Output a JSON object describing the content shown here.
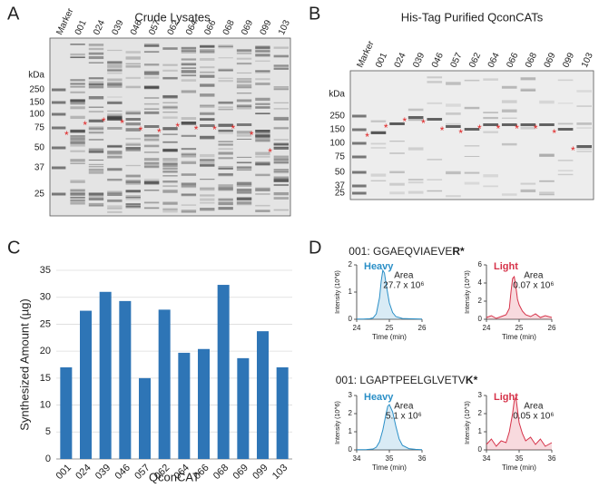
{
  "panel_labels": [
    "A",
    "B",
    "C",
    "D"
  ],
  "gels": [
    {
      "title": "Crude Lysates",
      "unit": "kDa",
      "asterisk": "*",
      "lanes": [
        "Marker",
        "001",
        "024",
        "039",
        "046",
        "057",
        "062",
        "064",
        "066",
        "068",
        "069",
        "099",
        "103"
      ],
      "markers": [
        "250",
        "150",
        "100",
        "75",
        "50",
        "37",
        "25"
      ]
    },
    {
      "title": "His-Tag Purified QconCATs",
      "unit": "kDa",
      "asterisk": "*",
      "lanes": [
        "Marker",
        "001",
        "024",
        "039",
        "046",
        "057",
        "062",
        "064",
        "066",
        "068",
        "069",
        "099",
        "103"
      ],
      "markers": [
        "250",
        "150",
        "100",
        "75",
        "50",
        "37",
        "25"
      ]
    }
  ],
  "peptides": [
    {
      "prefix": "001: GGAEQVIAEVE",
      "bold": "R*"
    },
    {
      "prefix": "001: LGAPTPEELGLVETV",
      "bold": "K*"
    }
  ],
  "chart_data": [
    {
      "type": "bar",
      "ylabel": "Synthesized Amount (µg)",
      "xlabel": "QconCAT",
      "categories": [
        "001",
        "024",
        "039",
        "046",
        "057",
        "062",
        "064",
        "066",
        "068",
        "069",
        "099",
        "103"
      ],
      "values": [
        17,
        27.5,
        31,
        29.3,
        15,
        27.7,
        19.7,
        20.4,
        32.3,
        18.7,
        23.7,
        17
      ],
      "color": "#2e75b6",
      "ylim": [
        0,
        35
      ],
      "yticks": [
        0,
        5,
        10,
        15,
        20,
        25,
        30,
        35
      ],
      "grid": true
    },
    {
      "type": "line",
      "ylabel": "Intensity (10^6)",
      "xlabel": "Time (min)",
      "annotations": [
        "Area",
        "27.7 x 10⁶"
      ],
      "x": [
        24.0,
        24.2,
        24.4,
        24.5,
        24.6,
        24.7,
        24.75,
        24.8,
        24.85,
        24.9,
        25.0,
        25.1,
        25.2,
        25.4,
        25.6,
        26.0
      ],
      "series": [
        {
          "name": "Heavy",
          "color": "#2a8fc7",
          "values": [
            0.01,
            0.01,
            0.02,
            0.05,
            0.2,
            0.8,
            1.4,
            1.8,
            1.7,
            1.3,
            0.6,
            0.25,
            0.1,
            0.03,
            0.02,
            0.01
          ]
        }
      ],
      "xlim": [
        24,
        26
      ],
      "xticks": [
        24,
        25,
        26
      ],
      "ylim": [
        0,
        2
      ],
      "yticks": [
        0,
        1,
        2
      ]
    },
    {
      "type": "line",
      "ylabel": "Intensity (10^3)",
      "xlabel": "Time (min)",
      "annotations": [
        "Area",
        "0.07 x 10⁶"
      ],
      "x": [
        24.0,
        24.15,
        24.3,
        24.45,
        24.6,
        24.7,
        24.75,
        24.8,
        24.85,
        24.9,
        24.95,
        25.0,
        25.1,
        25.2,
        25.35,
        25.5,
        25.65,
        25.8,
        26.0
      ],
      "series": [
        {
          "name": "Light",
          "color": "#d6334a",
          "values": [
            0.2,
            0.4,
            0.1,
            0.3,
            0.5,
            1.2,
            3.0,
            4.5,
            4.7,
            3.6,
            2.2,
            1.6,
            0.9,
            0.5,
            0.3,
            0.6,
            0.2,
            0.4,
            0.2
          ]
        }
      ],
      "xlim": [
        24,
        26
      ],
      "xticks": [
        24,
        25,
        26
      ],
      "ylim": [
        0,
        6
      ],
      "yticks": [
        0,
        2,
        4,
        6
      ]
    },
    {
      "type": "line",
      "ylabel": "Intensity (10^6)",
      "xlabel": "Time (min)",
      "annotations": [
        "Area",
        "5.1 x 10⁶"
      ],
      "x": [
        34.0,
        34.3,
        34.5,
        34.6,
        34.7,
        34.8,
        34.9,
        34.95,
        35.0,
        35.1,
        35.2,
        35.3,
        35.4,
        35.6,
        35.8,
        36.0
      ],
      "series": [
        {
          "name": "Heavy",
          "color": "#2a8fc7",
          "values": [
            0.01,
            0.02,
            0.05,
            0.15,
            0.45,
            1.1,
            2.0,
            2.4,
            2.5,
            2.1,
            1.3,
            0.6,
            0.25,
            0.07,
            0.03,
            0.01
          ]
        }
      ],
      "xlim": [
        34,
        36
      ],
      "xticks": [
        34,
        35,
        36
      ],
      "ylim": [
        0,
        3
      ],
      "yticks": [
        0,
        1,
        2,
        3
      ]
    },
    {
      "type": "line",
      "ylabel": "Intensity (10^3)",
      "xlabel": "Time (min)",
      "annotations": [
        "Area",
        "0.05 x 10⁶"
      ],
      "x": [
        34.0,
        34.15,
        34.3,
        34.45,
        34.6,
        34.7,
        34.8,
        34.85,
        34.9,
        34.95,
        35.0,
        35.1,
        35.2,
        35.35,
        35.5,
        35.65,
        35.8,
        36.0
      ],
      "series": [
        {
          "name": "Light",
          "color": "#d6334a",
          "values": [
            0.3,
            0.6,
            0.2,
            0.5,
            0.4,
            1.0,
            2.0,
            2.7,
            2.9,
            2.2,
            1.5,
            0.9,
            0.5,
            0.7,
            0.3,
            0.6,
            0.2,
            0.4
          ]
        }
      ],
      "xlim": [
        34,
        36
      ],
      "xticks": [
        34,
        35,
        36
      ],
      "ylim": [
        0,
        3
      ],
      "yticks": [
        0,
        1,
        2,
        3
      ]
    }
  ]
}
